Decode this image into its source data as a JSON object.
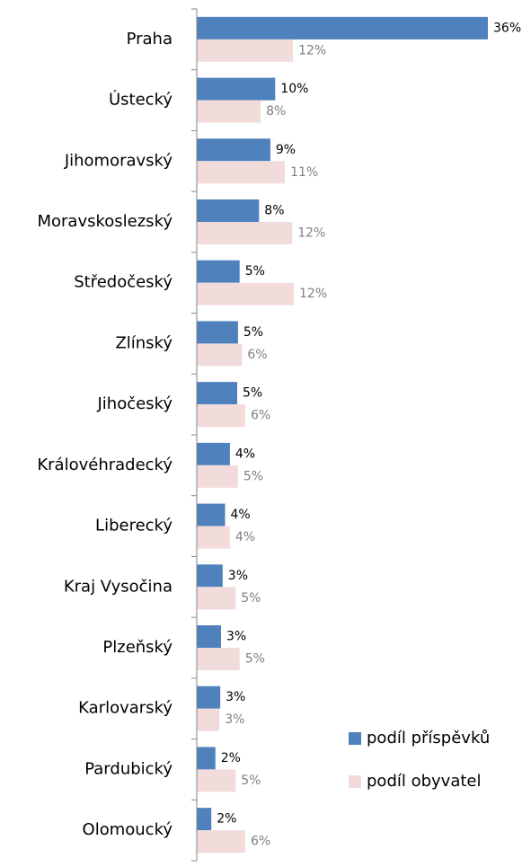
{
  "chart_data": {
    "type": "barh",
    "categories": [
      "Praha",
      "Ústecký",
      "Jihomoravský",
      "Moravskoslezský",
      "Středočeský",
      "Zlínský",
      "Jihočeský",
      "Královéhradecký",
      "Liberecký",
      "Kraj Vysočina",
      "Plzeňský",
      "Karlovarský",
      "Pardubický",
      "Olomoucký"
    ],
    "series": [
      {
        "name": "podíl příspěvků",
        "color": "#4f81bd",
        "label_color": "#000000",
        "values": [
          36.0,
          9.7,
          9.1,
          7.7,
          5.3,
          5.1,
          5.0,
          4.1,
          3.5,
          3.2,
          3.0,
          2.9,
          2.3,
          1.8
        ],
        "value_labels": [
          "36%",
          "10%",
          "9%",
          "8%",
          "5%",
          "5%",
          "5%",
          "4%",
          "4%",
          "3%",
          "3%",
          "3%",
          "2%",
          "2%"
        ]
      },
      {
        "name": "podíl obyvatel",
        "color": "#f2dcdb",
        "label_color": "#7f7f7f",
        "values": [
          11.9,
          7.9,
          10.9,
          11.8,
          12.0,
          5.6,
          6.0,
          5.1,
          4.1,
          4.8,
          5.3,
          2.8,
          4.8,
          6.0
        ],
        "value_labels": [
          "12%",
          "8%",
          "11%",
          "12%",
          "12%",
          "6%",
          "6%",
          "5%",
          "4%",
          "5%",
          "5%",
          "3%",
          "5%",
          "6%"
        ]
      }
    ],
    "xlim": [
      0,
      40
    ],
    "legend": "lower right"
  }
}
